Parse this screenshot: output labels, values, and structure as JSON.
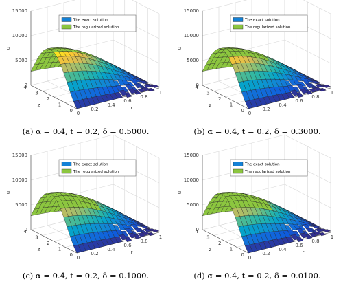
{
  "panels": [
    {
      "legend": [
        "The exact solution",
        "The regularized solution"
      ],
      "u_label": "u",
      "r_label": "r",
      "z_label": "z",
      "u_ticks": [
        "0",
        "5000",
        "10000",
        "15000"
      ],
      "r_ticks": [
        "0",
        "0.2",
        "0.4",
        "0.6",
        "0.8",
        "1"
      ],
      "z_ticks": [
        "0",
        "1",
        "2",
        "3",
        "4"
      ],
      "caption": "(a) α = 0.4, t = 0.2, δ = 0.5000."
    },
    {
      "legend": [
        "The exact solution",
        "The regularized solution"
      ],
      "u_label": "u",
      "r_label": "r",
      "z_label": "z",
      "u_ticks": [
        "0",
        "5000",
        "10000",
        "15000"
      ],
      "r_ticks": [
        "0",
        "0.2",
        "0.4",
        "0.6",
        "0.8",
        "1"
      ],
      "z_ticks": [
        "0",
        "1",
        "2",
        "3",
        "4"
      ],
      "caption": "(b) α = 0.4, t = 0.2, δ = 0.3000."
    },
    {
      "legend": [
        "The exact solution",
        "The regularized solution"
      ],
      "u_label": "u",
      "r_label": "r",
      "z_label": "z",
      "u_ticks": [
        "0",
        "5000",
        "10000",
        "15000"
      ],
      "r_ticks": [
        "0",
        "0.2",
        "0.4",
        "0.6",
        "0.8",
        "1"
      ],
      "z_ticks": [
        "0",
        "1",
        "2",
        "3",
        "4"
      ],
      "caption": "(c) α = 0.4, t = 0.2, δ = 0.1000."
    },
    {
      "legend": [
        "The exact solution",
        "The regularized solution"
      ],
      "u_label": "u",
      "r_label": "r",
      "z_label": "z",
      "u_ticks": [
        "0",
        "5000",
        "10000",
        "15000"
      ],
      "r_ticks": [
        "0",
        "0.2",
        "0.4",
        "0.6",
        "0.8",
        "1"
      ],
      "z_ticks": [
        "0",
        "1",
        "2",
        "3",
        "4"
      ],
      "caption": "(d) α = 0.4, t = 0.2, δ = 0.0100."
    }
  ]
}
